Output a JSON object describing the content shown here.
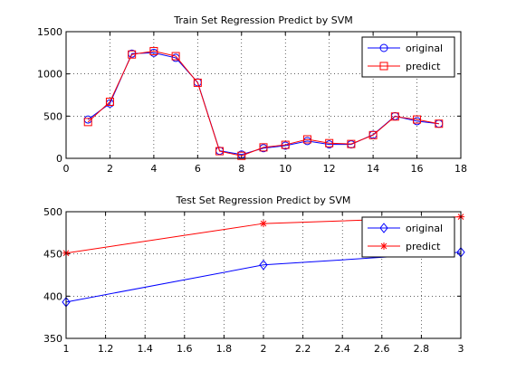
{
  "chart_data": [
    {
      "type": "line",
      "title": "Train Set Regression Predict by SVM",
      "xlabel": "",
      "ylabel": "",
      "xlim": [
        0,
        18
      ],
      "ylim": [
        0,
        1500
      ],
      "xticks": [
        0,
        2,
        4,
        6,
        8,
        10,
        12,
        14,
        16,
        18
      ],
      "yticks": [
        0,
        500,
        1000,
        1500
      ],
      "x": [
        1,
        2,
        3,
        4,
        5,
        6,
        7,
        8,
        9,
        10,
        11,
        12,
        13,
        14,
        15,
        16,
        17
      ],
      "grid": true,
      "legend_position": "top-right",
      "series": [
        {
          "name": "original",
          "color": "#0000ff",
          "marker": "circle",
          "values": [
            460,
            650,
            1240,
            1250,
            1190,
            900,
            90,
            45,
            120,
            150,
            205,
            165,
            165,
            280,
            500,
            440,
            410
          ]
        },
        {
          "name": "predict",
          "color": "#ff0000",
          "marker": "square",
          "values": [
            430,
            670,
            1230,
            1270,
            1210,
            895,
            85,
            30,
            130,
            160,
            225,
            180,
            170,
            275,
            495,
            460,
            410
          ]
        }
      ]
    },
    {
      "type": "line",
      "title": "Test Set Regression Predict by SVM",
      "xlabel": "",
      "ylabel": "",
      "xlim": [
        1,
        3
      ],
      "ylim": [
        350,
        500
      ],
      "xticks": [
        1,
        1.2,
        1.4,
        1.6,
        1.8,
        2,
        2.2,
        2.4,
        2.6,
        2.8,
        3
      ],
      "yticks": [
        350,
        400,
        450,
        500
      ],
      "x": [
        1,
        2,
        3
      ],
      "grid": true,
      "legend_position": "top-right",
      "series": [
        {
          "name": "original",
          "color": "#0000ff",
          "marker": "diamond",
          "values": [
            393,
            437,
            452
          ]
        },
        {
          "name": "predict",
          "color": "#ff0000",
          "marker": "star",
          "values": [
            451,
            486,
            494
          ]
        }
      ]
    }
  ]
}
